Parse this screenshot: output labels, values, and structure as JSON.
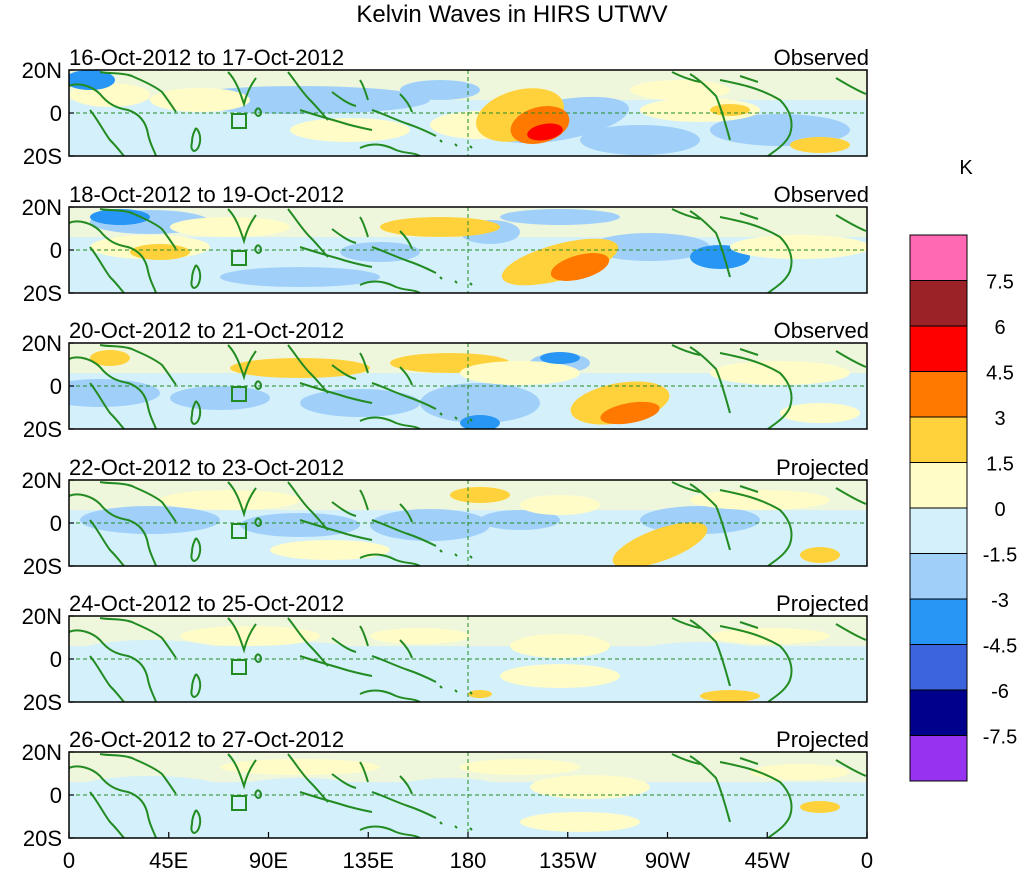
{
  "title": "Kelvin Waves in HIRS UTWV",
  "lat_labels": [
    "20N",
    "0",
    "20S"
  ],
  "lon_labels": [
    "0",
    "45E",
    "90E",
    "135E",
    "180",
    "135W",
    "90W",
    "45W",
    "0"
  ],
  "panels": [
    {
      "date_range": "16-Oct-2012 to 17-Oct-2012",
      "status": "Observed"
    },
    {
      "date_range": "18-Oct-2012 to 19-Oct-2012",
      "status": "Observed"
    },
    {
      "date_range": "20-Oct-2012 to 21-Oct-2012",
      "status": "Observed"
    },
    {
      "date_range": "22-Oct-2012 to 23-Oct-2012",
      "status": "Projected"
    },
    {
      "date_range": "24-Oct-2012 to 25-Oct-2012",
      "status": "Projected"
    },
    {
      "date_range": "26-Oct-2012 to 27-Oct-2012",
      "status": "Projected"
    }
  ],
  "legend": {
    "unit": "K",
    "labels": [
      "7.5",
      "6",
      "4.5",
      "3",
      "1.5",
      "0",
      "-1.5",
      "-3",
      "-4.5",
      "-6",
      "-7.5"
    ],
    "colors": [
      "#ff69b4",
      "#9b2226",
      "#ff0000",
      "#ff7800",
      "#ffd23c",
      "#fffcc8",
      "#d4f0fa",
      "#a0d0fa",
      "#2896f5",
      "#3c64dc",
      "#00008c",
      "#9632f0"
    ]
  },
  "colors": {
    "land_outline": "#228b22",
    "axis": "#000000",
    "equator_line": "#228b22"
  }
}
